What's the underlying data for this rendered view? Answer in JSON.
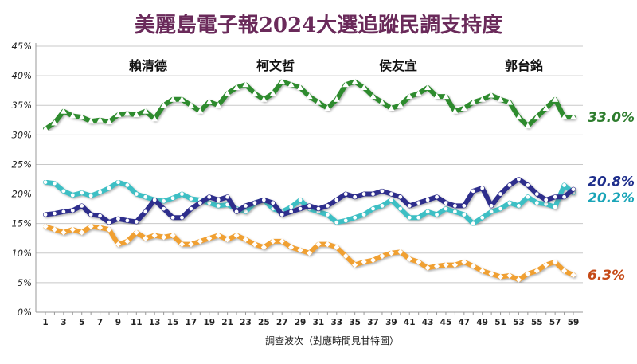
{
  "chart_data": {
    "type": "line",
    "title": "美麗島電子報2024大選追蹤民調支持度",
    "xlabel": "調查波次（對應時間見甘特圖）",
    "ylabel": "",
    "xlim": [
      1,
      59
    ],
    "ylim": [
      0,
      45
    ],
    "grid": "horizontal",
    "legend_position": "top",
    "x": [
      1,
      2,
      3,
      4,
      5,
      6,
      7,
      8,
      9,
      10,
      11,
      12,
      13,
      14,
      15,
      16,
      17,
      18,
      19,
      20,
      21,
      22,
      23,
      24,
      25,
      26,
      27,
      28,
      29,
      30,
      31,
      32,
      33,
      34,
      35,
      36,
      37,
      38,
      39,
      40,
      41,
      42,
      43,
      44,
      45,
      46,
      47,
      48,
      49,
      50,
      51,
      52,
      53,
      54,
      55,
      56,
      57,
      58,
      59
    ],
    "x_ticks": [
      "1",
      "3",
      "5",
      "7",
      "9",
      "11",
      "13",
      "15",
      "17",
      "19",
      "21",
      "23",
      "25",
      "27",
      "29",
      "31",
      "33",
      "35",
      "37",
      "39",
      "41",
      "43",
      "45",
      "47",
      "49",
      "51",
      "53",
      "55",
      "57",
      "59"
    ],
    "y_ticks": [
      "0%",
      "5%",
      "10%",
      "15%",
      "20%",
      "25%",
      "30%",
      "35%",
      "40%",
      "45%"
    ],
    "series": [
      {
        "name": "賴清德",
        "color": "#2e8b2e",
        "marker": "triangle",
        "end_label": "33.0%",
        "end_label_color": "#2e7d2e",
        "values": [
          31.0,
          32.0,
          34.0,
          33.2,
          33.0,
          32.3,
          32.5,
          32.2,
          33.4,
          33.6,
          33.4,
          34.0,
          32.7,
          35.0,
          36.0,
          36.0,
          35.0,
          34.0,
          35.6,
          35.0,
          37.0,
          38.0,
          38.5,
          37.0,
          36.0,
          37.0,
          39.0,
          38.5,
          38.0,
          36.5,
          35.5,
          34.5,
          36.0,
          38.5,
          39.0,
          38.0,
          36.5,
          35.5,
          34.5,
          35.0,
          36.5,
          37.0,
          38.0,
          36.5,
          36.5,
          34.0,
          34.5,
          35.5,
          36.0,
          36.7,
          36.0,
          35.5,
          33.0,
          31.5,
          33.0,
          34.5,
          36.0,
          33.0,
          33.0
        ]
      },
      {
        "name": "柯文哲",
        "color": "#3dbfc4",
        "marker": "circle",
        "end_label": "20.2%",
        "end_label_color": "#1aa5b8",
        "values": [
          22.0,
          21.8,
          20.5,
          19.8,
          20.2,
          19.7,
          20.3,
          21.0,
          22.0,
          21.5,
          20.0,
          19.5,
          19.0,
          18.8,
          19.3,
          20.0,
          19.2,
          19.0,
          18.5,
          18.0,
          18.2,
          17.5,
          17.0,
          18.5,
          19.0,
          17.5,
          17.0,
          17.8,
          19.0,
          17.5,
          17.0,
          16.5,
          15.2,
          15.5,
          16.0,
          16.5,
          17.5,
          18.0,
          19.0,
          17.5,
          16.0,
          16.0,
          17.0,
          16.5,
          17.5,
          17.0,
          16.5,
          15.0,
          16.0,
          17.0,
          17.5,
          18.5,
          18.0,
          19.5,
          18.5,
          18.3,
          17.8,
          21.5,
          20.2
        ]
      },
      {
        "name": "侯友宜",
        "color": "#2e2e8c",
        "marker": "circle",
        "end_label": "20.8%",
        "end_label_color": "#1f2f8c",
        "values": [
          16.5,
          16.7,
          17.0,
          17.2,
          18.0,
          16.5,
          16.3,
          15.2,
          15.8,
          15.5,
          15.3,
          17.0,
          19.0,
          17.5,
          16.0,
          16.0,
          17.5,
          18.5,
          19.5,
          19.0,
          19.5,
          17.0,
          18.0,
          18.5,
          19.0,
          18.5,
          16.5,
          17.0,
          17.5,
          18.0,
          17.5,
          18.0,
          19.0,
          20.0,
          19.5,
          20.0,
          20.0,
          20.5,
          20.0,
          19.5,
          18.0,
          18.5,
          19.0,
          19.5,
          18.5,
          18.0,
          18.0,
          20.5,
          21.0,
          18.0,
          20.0,
          21.5,
          22.5,
          21.5,
          20.0,
          19.0,
          19.5,
          19.5,
          20.8
        ]
      },
      {
        "name": "郭台銘",
        "color": "#f0a030",
        "marker": "diamond",
        "end_label": "6.3%",
        "end_label_color": "#c64a17",
        "values": [
          14.5,
          14.0,
          13.5,
          14.0,
          13.5,
          14.5,
          14.3,
          14.0,
          11.5,
          12.0,
          13.5,
          12.5,
          13.0,
          12.7,
          13.0,
          11.5,
          11.5,
          12.0,
          12.5,
          13.0,
          12.3,
          13.0,
          12.3,
          11.5,
          11.0,
          12.0,
          12.0,
          11.0,
          10.5,
          10.0,
          11.5,
          11.5,
          11.0,
          9.5,
          8.0,
          8.5,
          8.8,
          9.5,
          10.0,
          10.2,
          9.0,
          8.5,
          7.5,
          7.8,
          8.0,
          8.0,
          8.5,
          7.8,
          7.0,
          6.5,
          6.0,
          6.2,
          5.5,
          6.5,
          7.0,
          8.0,
          8.5,
          7.0,
          6.3
        ]
      }
    ]
  }
}
